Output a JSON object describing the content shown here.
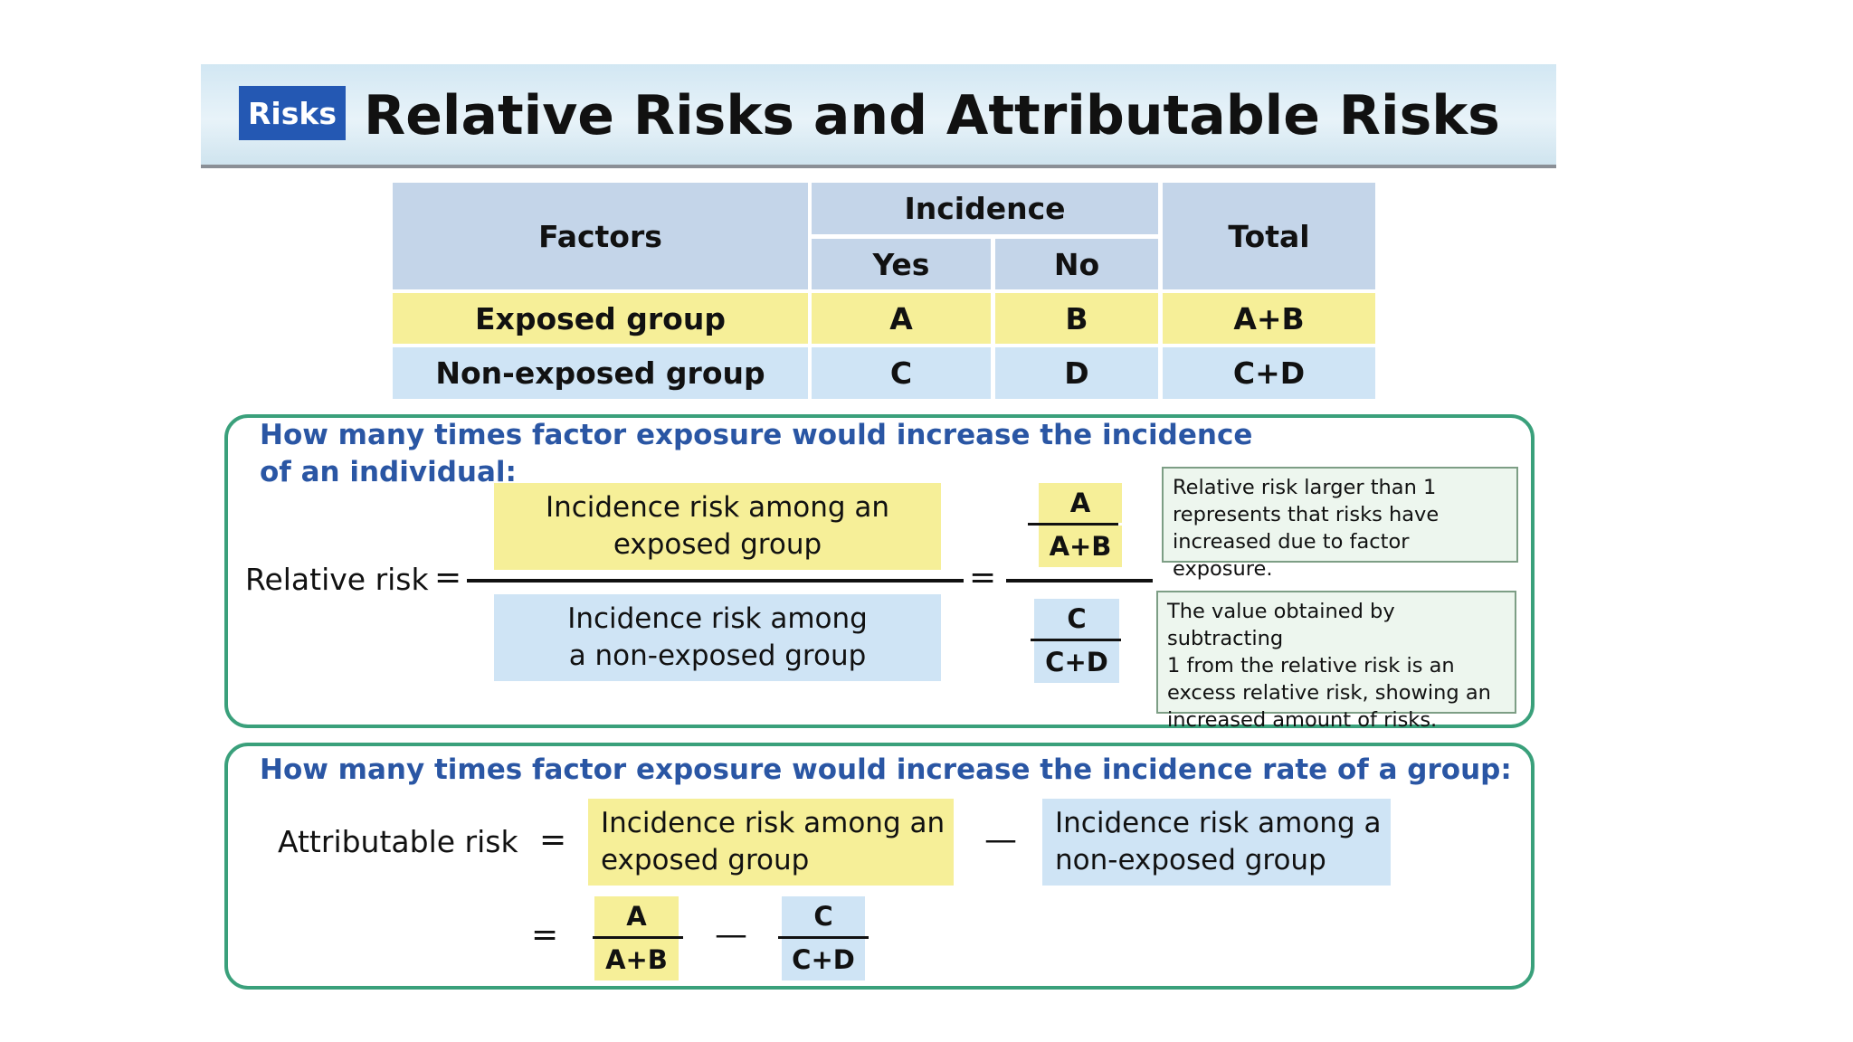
{
  "header": {
    "badge": "Risks",
    "title": "Relative Risks and Attributable Risks"
  },
  "table": {
    "factors_header": "Factors",
    "incidence_header": "Incidence",
    "yes_header": "Yes",
    "no_header": "No",
    "total_header": "Total",
    "rows": [
      {
        "label": "Exposed group",
        "yes": "A",
        "no": "B",
        "total": "A+B"
      },
      {
        "label": "Non-exposed group",
        "yes": "C",
        "no": "D",
        "total": "C+D"
      }
    ]
  },
  "relative": {
    "heading_line1": "How many times factor exposure would increase the incidence",
    "heading_line2": "of an individual:",
    "label": "Relative risk",
    "equals": "=",
    "numerator_text": "Incidence risk among an\nexposed group",
    "denominator_text": "Incidence risk among\na non-exposed group",
    "frac_num_top": "A",
    "frac_num_bottom": "A+B",
    "frac_den_top": "C",
    "frac_den_bottom": "C+D",
    "note1": "Relative risk larger than 1\nrepresents that risks have\nincreased due to factor exposure.",
    "note2": "The value obtained by subtracting\n1 from the relative risk is an\nexcess relative risk, showing an\nincreased amount of risks."
  },
  "attributable": {
    "heading": "How many times factor exposure would increase the incidence rate of a group:",
    "label": "Attributable risk",
    "equals": "=",
    "minus": "—",
    "exposed_text": "Incidence risk among an\nexposed group",
    "nonexposed_text": "Incidence risk among a\nnon-exposed group",
    "frac1_top": "A",
    "frac1_bottom": "A+B",
    "frac2_top": "C",
    "frac2_bottom": "C+D"
  },
  "colors": {
    "badge": "#2458b3",
    "heading_blue": "#2a56a4",
    "panel_border": "#3aa07b",
    "yellow": "#f6ef98",
    "light_blue": "#cfe4f5",
    "table_header": "#c4d5e9"
  }
}
